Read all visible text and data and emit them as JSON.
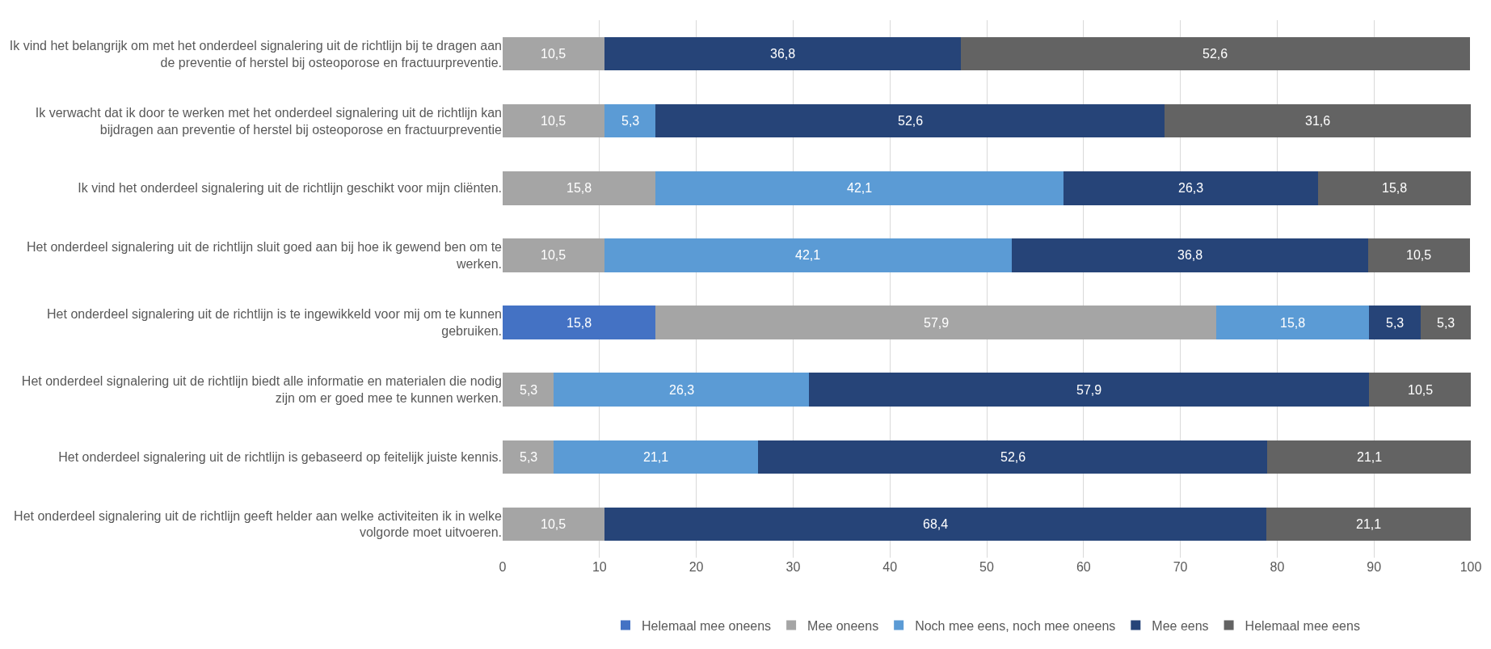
{
  "chart_data": {
    "type": "bar",
    "orientation": "horizontal",
    "stacked": true,
    "grid": "x",
    "legend": "bottom",
    "xlim": [
      0,
      100
    ],
    "xticks": [
      0,
      10,
      20,
      30,
      40,
      50,
      60,
      70,
      80,
      90,
      100
    ],
    "categories": [
      "Ik vind het belangrijk om met het onderdeel signalering uit de richtlijn bij te dragen aan de preventie of herstel bij osteoporose en fractuurpreventie.",
      "Ik verwacht dat ik door te werken met het onderdeel signalering uit de richtlijn kan bijdragen aan preventie of herstel bij osteoporose en fractuurpreventie",
      "Ik vind het onderdeel signalering uit de richtlijn geschikt voor mijn cliënten.",
      "Het onderdeel signalering uit de richtlijn sluit goed aan bij hoe ik gewend ben om te werken.",
      "Het onderdeel signalering uit de richtlijn is te ingewikkeld voor mij om te kunnen gebruiken.",
      "Het onderdeel signalering uit de richtlijn biedt alle informatie en materialen die nodig zijn om er goed mee te kunnen werken.",
      "Het onderdeel signalering uit de richtlijn is gebaseerd op feitelijk juiste kennis.",
      "Het onderdeel signalering uit de richtlijn geeft helder aan welke activiteiten ik in welke volgorde moet uitvoeren."
    ],
    "series": [
      {
        "name": "Helemaal mee oneens",
        "color": "#4472c4",
        "values": [
          null,
          null,
          null,
          null,
          15.8,
          null,
          null,
          null
        ],
        "value_labels": [
          null,
          null,
          null,
          null,
          "15,8",
          null,
          null,
          null
        ]
      },
      {
        "name": "Mee oneens",
        "color": "#a5a5a5",
        "values": [
          10.5,
          10.5,
          15.8,
          10.5,
          57.9,
          5.3,
          5.3,
          10.5
        ],
        "value_labels": [
          "10,5",
          "10,5",
          "15,8",
          "10,5",
          "57,9",
          "5,3",
          "5,3",
          "10,5"
        ]
      },
      {
        "name": "Noch mee eens, noch mee oneens",
        "color": "#5b9bd5",
        "values": [
          null,
          5.3,
          42.1,
          42.1,
          15.8,
          26.3,
          21.1,
          null
        ],
        "value_labels": [
          null,
          "5,3",
          "42,1",
          "42,1",
          "15,8",
          "26,3",
          "21,1",
          null
        ]
      },
      {
        "name": "Mee eens",
        "color": "#264478",
        "values": [
          36.8,
          52.6,
          26.3,
          36.8,
          5.3,
          57.9,
          52.6,
          68.4
        ],
        "value_labels": [
          "36,8",
          "52,6",
          "26,3",
          "36,8",
          "5,3",
          "57,9",
          "52,6",
          "68,4"
        ]
      },
      {
        "name": "Helemaal mee eens",
        "color": "#636363",
        "values": [
          52.6,
          31.6,
          15.8,
          10.5,
          5.3,
          10.5,
          21.1,
          21.1
        ],
        "value_labels": [
          "52,6",
          "31,6",
          "15,8",
          "10,5",
          "5,3",
          "10,5",
          "21,1",
          "21,1"
        ]
      }
    ]
  }
}
